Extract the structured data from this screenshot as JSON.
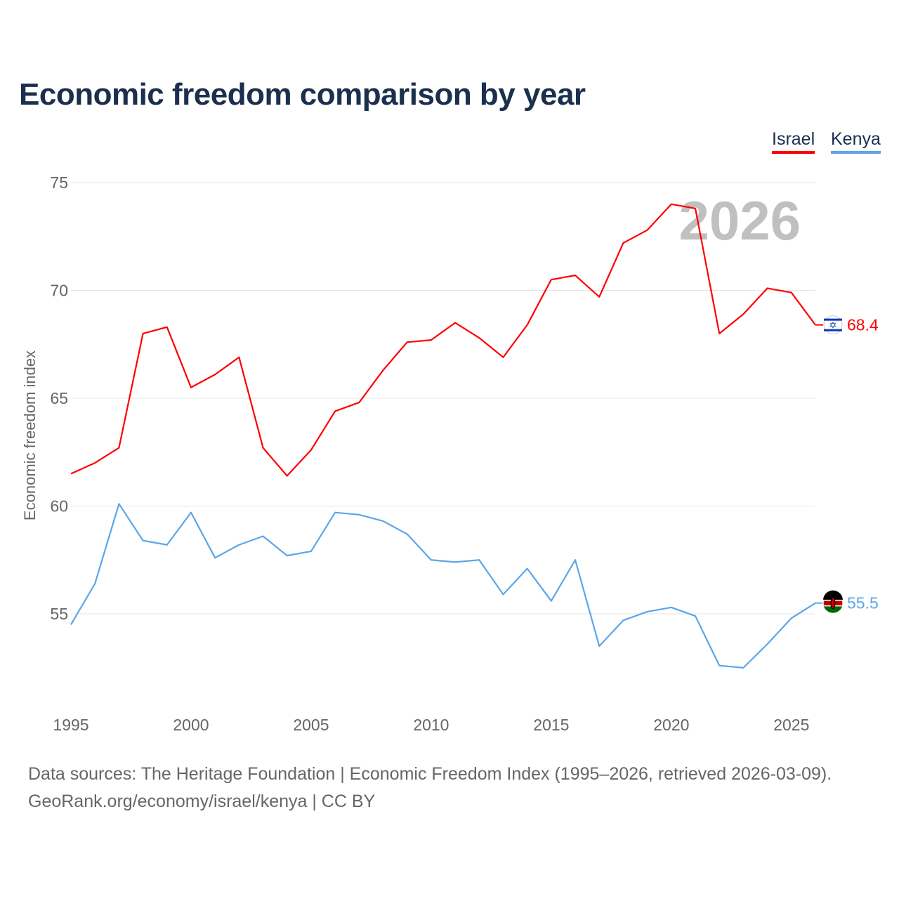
{
  "title": "Economic freedom comparison by year",
  "watermark_year": "2026",
  "footer": {
    "line1": "Data sources: The Heritage Foundation | Economic Freedom Index (1995–2026, retrieved 2026-03-09).",
    "line2": "GeoRank.org/economy/israel/kenya | CC BY"
  },
  "chart_data": {
    "type": "line",
    "title": "Economic freedom comparison by year",
    "xlabel": "",
    "ylabel": "Economic freedom index",
    "xlim": [
      1995,
      2026
    ],
    "ylim": [
      50.5,
      75.5
    ],
    "yticks": [
      55,
      60,
      65,
      70,
      75
    ],
    "xticks": [
      1995,
      2000,
      2005,
      2010,
      2015,
      2020,
      2025
    ],
    "grid": true,
    "legend_placement": "top-right",
    "x": [
      1995,
      1996,
      1997,
      1998,
      1999,
      2000,
      2001,
      2002,
      2003,
      2004,
      2005,
      2006,
      2007,
      2008,
      2009,
      2010,
      2011,
      2012,
      2013,
      2014,
      2015,
      2016,
      2017,
      2018,
      2019,
      2020,
      2021,
      2022,
      2023,
      2024,
      2025,
      2026
    ],
    "series": [
      {
        "name": "Israel",
        "color": "#ff0000",
        "end_label": "68.4",
        "values": [
          61.5,
          62.0,
          62.7,
          68.0,
          68.3,
          65.5,
          66.1,
          66.9,
          62.7,
          61.4,
          62.6,
          64.4,
          64.8,
          66.3,
          67.6,
          67.7,
          68.5,
          67.8,
          66.9,
          68.4,
          70.5,
          70.7,
          69.7,
          72.2,
          72.8,
          74.0,
          73.8,
          68.0,
          68.9,
          70.1,
          69.9,
          68.4
        ]
      },
      {
        "name": "Kenya",
        "color": "#5ba6e8",
        "end_label": "55.5",
        "values": [
          54.5,
          56.4,
          60.1,
          58.4,
          58.2,
          59.7,
          57.6,
          58.2,
          58.6,
          57.7,
          57.9,
          59.7,
          59.6,
          59.3,
          58.7,
          57.5,
          57.4,
          57.5,
          55.9,
          57.1,
          55.6,
          57.5,
          53.5,
          54.7,
          55.1,
          55.3,
          54.9,
          52.6,
          52.5,
          53.6,
          54.8,
          55.5
        ]
      }
    ]
  }
}
